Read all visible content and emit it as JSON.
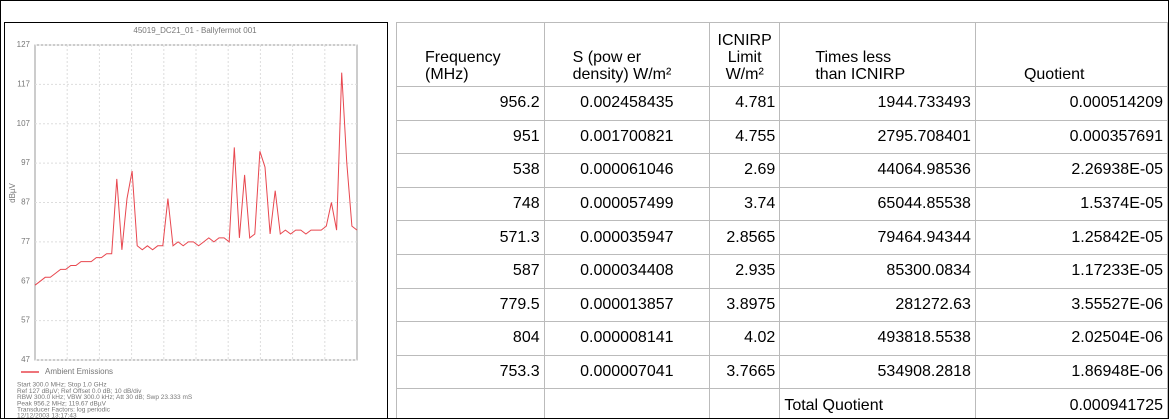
{
  "chart_data": {
    "type": "line",
    "title": "45019_DC21_01 - Ballyfermot 001",
    "y_label": "dBµV",
    "ylim": [
      47,
      127
    ],
    "yticks": [
      47,
      57,
      67,
      77,
      87,
      97,
      107,
      117,
      127
    ],
    "grid": true,
    "series": [
      {
        "name": "Ambient Emissions",
        "color": "#e8474f",
        "values": [
          66,
          67,
          68,
          68,
          69,
          70,
          70,
          71,
          71,
          72,
          72,
          72,
          73,
          73,
          74,
          74,
          93,
          75,
          88,
          95,
          76,
          75,
          76,
          75,
          76,
          76,
          88,
          76,
          77,
          76,
          77,
          77,
          76,
          77,
          78,
          77,
          78,
          78,
          77,
          101,
          78,
          94,
          78,
          79,
          100,
          96,
          79,
          90,
          79,
          80,
          79,
          80,
          80,
          79,
          80,
          80,
          80,
          81,
          87,
          80,
          120,
          97,
          81,
          80
        ]
      }
    ],
    "notes": [
      "Start 300.0 MHz; Stop 1.0 GHz",
      "Ref 127 dBµV; Ref Offset 0.0 dB; 10 dB/div",
      "RBW 300.0 kHz; VBW 300.0 kHz; Att 30 dB; Swp 23.333 mS",
      "Peak 956.2 MHz; 119.67 dBµV",
      "Transducer Factors: log periodic",
      "12/12/2003 13:17:43"
    ]
  },
  "table": {
    "header": [
      [
        "Frequency",
        "(MHz)"
      ],
      [
        "S (pow er",
        "density) W/m²"
      ],
      [
        "ICNIRP",
        "Limit",
        "W/m²"
      ],
      [
        "Times less",
        "than ICNIRP"
      ],
      [
        "Quotient"
      ]
    ],
    "rows": [
      [
        "956.2",
        "0.002458435",
        "4.781",
        "1944.733493",
        "0.000514209"
      ],
      [
        "951",
        "0.001700821",
        "4.755",
        "2795.708401",
        "0.000357691"
      ],
      [
        "538",
        "0.000061046",
        "2.69",
        "44064.98536",
        "2.26938E-05"
      ],
      [
        "748",
        "0.000057499",
        "3.74",
        "65044.85538",
        "1.5374E-05"
      ],
      [
        "571.3",
        "0.000035947",
        "2.8565",
        "79464.94344",
        "1.25842E-05"
      ],
      [
        "587",
        "0.000034408",
        "2.935",
        "85300.0834",
        "1.17233E-05"
      ],
      [
        "779.5",
        "0.000013857",
        "3.8975",
        "281272.63",
        "3.55527E-06"
      ],
      [
        "804",
        "0.000008141",
        "4.02",
        "493818.5538",
        "2.02504E-06"
      ],
      [
        "753.3",
        "0.000007041",
        "3.7665",
        "534908.2818",
        "1.86948E-06"
      ]
    ],
    "total": [
      "Total Quotient",
      "0.000941725"
    ]
  }
}
